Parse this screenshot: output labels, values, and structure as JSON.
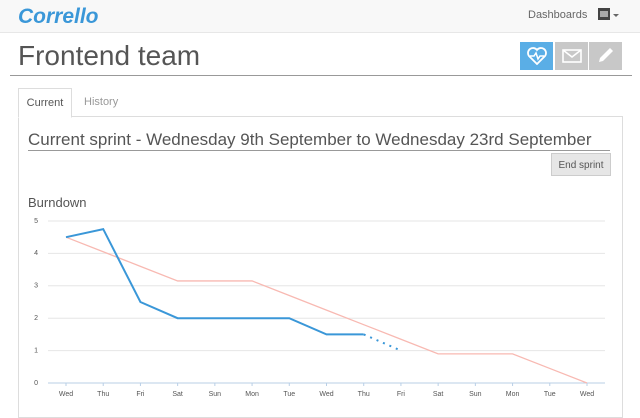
{
  "navbar": {
    "logo": "Corrello",
    "links": [
      "Dashboards"
    ]
  },
  "header": {
    "title": "Frontend team"
  },
  "tabs": [
    "Current",
    "History"
  ],
  "sprint": {
    "title": "Current sprint - Wednesday 9th September to Wednesday 23rd September",
    "button": "End sprint"
  },
  "chart_data": {
    "type": "line",
    "title": "Burndown",
    "categories": [
      "Wed",
      "Thu",
      "Fri",
      "Sat",
      "Sun",
      "Mon",
      "Tue",
      "Wed",
      "Thu",
      "Fri",
      "Sat",
      "Sun",
      "Mon",
      "Tue",
      "Wed"
    ],
    "series": [
      {
        "color": "#f8b9b2",
        "style": "solid",
        "values": [
          4.5,
          4.05,
          3.6,
          3.15,
          3.15,
          3.15,
          2.7,
          2.25,
          1.8,
          1.35,
          0.9,
          0.9,
          0.9,
          0.45,
          0
        ]
      },
      {
        "color": "#3a97d8",
        "style": "solid",
        "values": [
          4.5,
          4.75,
          2.5,
          2,
          2,
          2,
          2,
          1.5,
          1.5,
          null,
          null,
          null,
          null,
          null,
          null
        ]
      },
      {
        "color": "#3a97d8",
        "style": "dotted",
        "values": [
          null,
          null,
          null,
          null,
          null,
          null,
          null,
          null,
          1.5,
          1,
          null,
          null,
          null,
          null,
          null
        ]
      }
    ],
    "ylim": [
      0,
      5
    ],
    "yticks": [
      0,
      1,
      2,
      3,
      4,
      5
    ],
    "grid": true
  }
}
